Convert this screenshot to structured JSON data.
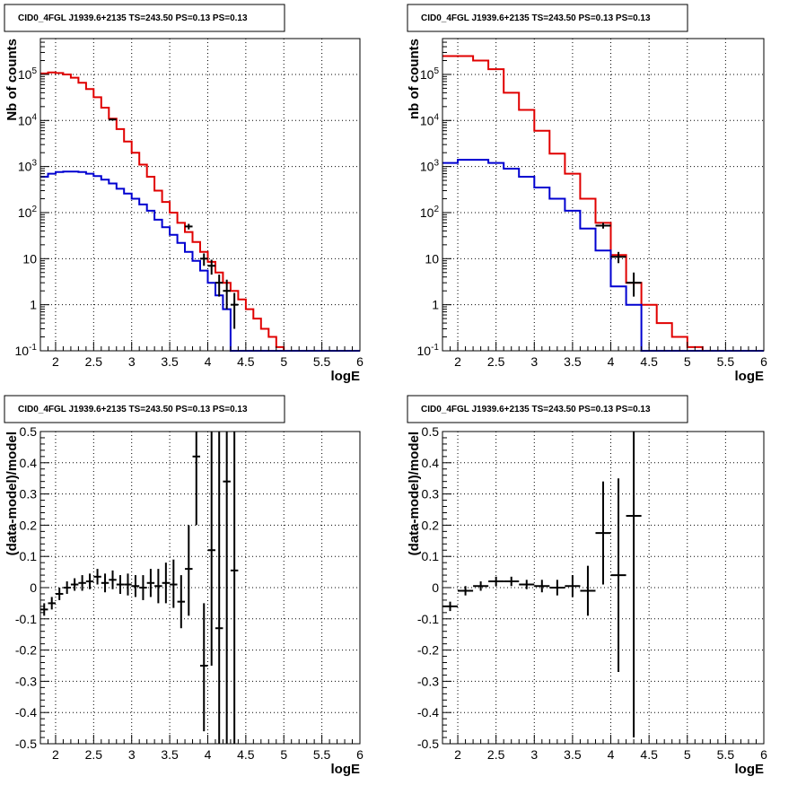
{
  "colors": {
    "data": "#000000",
    "model": "#e00000",
    "component": "#0000d0",
    "grid": "#000000"
  },
  "chart_data": [
    {
      "type": "line",
      "title": "CID0_4FGL J1939.6+2135 TS=243.50 PS=0.13 PS=0.13",
      "xlabel": "logE",
      "ylabel": "Nb of counts",
      "xlim": [
        1.8,
        6.0
      ],
      "ylim": [
        0.1,
        600000
      ],
      "yscale": "log",
      "grid": true,
      "xticks": [
        "2",
        "2.5",
        "3",
        "3.5",
        "4",
        "4.5",
        "5",
        "5.5",
        "6"
      ],
      "yticks": [
        "10^-1",
        "1",
        "10",
        "10^2",
        "10^3",
        "10^4",
        "10^5"
      ],
      "series": [
        {
          "style": "step",
          "color": "#e00000",
          "bin_width": 0.1,
          "x": [
            1.8,
            1.9,
            2.0,
            2.1,
            2.2,
            2.3,
            2.4,
            2.5,
            2.6,
            2.7,
            2.8,
            2.9,
            3.0,
            3.1,
            3.2,
            3.3,
            3.4,
            3.5,
            3.6,
            3.7,
            3.8,
            3.9,
            4.0,
            4.1,
            4.2,
            4.3,
            4.4,
            4.5,
            4.6,
            4.7,
            4.8,
            4.9,
            5.0,
            5.1,
            5.2,
            5.3,
            5.4,
            5.5,
            5.6,
            5.7,
            5.8,
            5.9
          ],
          "values": [
            105000,
            110000,
            107000,
            100000,
            85000,
            66000,
            48000,
            32000,
            19000,
            11000,
            6500,
            3500,
            2000,
            1100,
            600,
            300,
            170,
            100,
            60,
            38,
            23,
            14,
            8.5,
            5,
            3,
            2,
            1.3,
            0.8,
            0.5,
            0.3,
            0.2,
            0.12,
            0.1,
            0.1,
            0.1,
            0.1,
            0.1,
            0.1,
            0.1,
            0.1,
            0.1,
            0.1
          ]
        },
        {
          "style": "step",
          "color": "#0000d0",
          "bin_width": 0.1,
          "x": [
            1.8,
            1.9,
            2.0,
            2.1,
            2.2,
            2.3,
            2.4,
            2.5,
            2.6,
            2.7,
            2.8,
            2.9,
            3.0,
            3.1,
            3.2,
            3.3,
            3.4,
            3.5,
            3.6,
            3.7,
            3.8,
            3.9,
            4.0,
            4.1,
            4.2,
            4.3,
            4.4,
            4.5,
            4.6,
            4.7,
            4.8,
            4.9,
            5.0,
            5.1,
            5.2,
            5.3,
            5.4,
            5.5,
            5.6,
            5.7,
            5.8,
            5.9
          ],
          "values": [
            600,
            700,
            760,
            780,
            780,
            760,
            700,
            620,
            520,
            430,
            330,
            260,
            200,
            150,
            110,
            70,
            48,
            33,
            22,
            14,
            9,
            5.5,
            3,
            1.6,
            0.8,
            0.1,
            0.1,
            0.1,
            0.1,
            0.1,
            0.1,
            0.1,
            0.1,
            0.1,
            0.1,
            0.1,
            0.1,
            0.1,
            0.1,
            0.1,
            0.1,
            0.1
          ]
        },
        {
          "style": "errorbar",
          "color": "#000000",
          "xerr": 0.05,
          "x": [
            2.75,
            3.75,
            3.95,
            4.05,
            4.15,
            4.25,
            4.35
          ],
          "values": [
            10500,
            50,
            10,
            7,
            3,
            2,
            1
          ],
          "ylow": [
            10000,
            43,
            7,
            4.5,
            1.5,
            0.8,
            0.3
          ],
          "yhigh": [
            11000,
            57,
            13,
            9.5,
            4.5,
            3.5,
            1.8
          ]
        }
      ]
    },
    {
      "type": "line",
      "title": "CID0_4FGL J1939.6+2135 TS=243.50 PS=0.13 PS=0.13",
      "xlabel": "logE",
      "ylabel": "nb of counts",
      "xlim": [
        1.8,
        6.0
      ],
      "ylim": [
        0.1,
        600000
      ],
      "yscale": "log",
      "grid": true,
      "xticks": [
        "2",
        "2.5",
        "3",
        "3.5",
        "4",
        "4.5",
        "5",
        "5.5",
        "6"
      ],
      "yticks": [
        "10^-1",
        "1",
        "10",
        "10^2",
        "10^3",
        "10^4",
        "10^5"
      ],
      "series": [
        {
          "style": "step",
          "color": "#e00000",
          "bin_width": 0.2,
          "x": [
            1.8,
            2.0,
            2.2,
            2.4,
            2.6,
            2.8,
            3.0,
            3.2,
            3.4,
            3.6,
            3.8,
            4.0,
            4.2,
            4.4,
            4.6,
            4.8,
            5.0,
            5.2,
            5.4,
            5.6,
            5.8
          ],
          "values": [
            250000,
            250000,
            200000,
            130000,
            40000,
            17000,
            6000,
            1900,
            700,
            200,
            60,
            12,
            3,
            1,
            0.4,
            0.2,
            0.12,
            0.1,
            0.1,
            0.1,
            0.1
          ]
        },
        {
          "style": "step",
          "color": "#0000d0",
          "bin_width": 0.2,
          "x": [
            1.8,
            2.0,
            2.2,
            2.4,
            2.6,
            2.8,
            3.0,
            3.2,
            3.4,
            3.6,
            3.8,
            4.0,
            4.2,
            4.4,
            4.6,
            4.8,
            5.0,
            5.2,
            5.4,
            5.6,
            5.8
          ],
          "values": [
            1200,
            1400,
            1400,
            1200,
            900,
            600,
            350,
            200,
            110,
            45,
            15,
            2.5,
            1,
            0.1,
            0.1,
            0.1,
            0.1,
            0.1,
            0.1,
            0.1,
            0.1
          ]
        },
        {
          "style": "errorbar",
          "color": "#000000",
          "xerr": 0.1,
          "x": [
            3.9,
            4.1,
            4.3
          ],
          "values": [
            52,
            11,
            3
          ],
          "ylow": [
            45,
            8,
            1.5
          ],
          "yhigh": [
            60,
            14,
            5
          ]
        }
      ]
    },
    {
      "type": "scatter",
      "title": "CID0_4FGL J1939.6+2135 TS=243.50 PS=0.13 PS=0.13",
      "xlabel": "logE",
      "ylabel": "(data-model)/model",
      "xlim": [
        1.8,
        6.0
      ],
      "ylim": [
        -0.5,
        0.5
      ],
      "grid": true,
      "xticks": [
        "2",
        "2.5",
        "3",
        "3.5",
        "4",
        "4.5",
        "5",
        "5.5",
        "6"
      ],
      "yticks": [
        "-0.5",
        "-0.4",
        "-0.3",
        "-0.2",
        "-0.1",
        "0",
        "0.1",
        "0.2",
        "0.3",
        "0.4",
        "0.5"
      ],
      "series": [
        {
          "style": "errorbar",
          "color": "#000000",
          "xerr": 0.05,
          "x": [
            1.85,
            1.95,
            2.05,
            2.15,
            2.25,
            2.35,
            2.45,
            2.55,
            2.65,
            2.75,
            2.85,
            2.95,
            3.05,
            3.15,
            3.25,
            3.35,
            3.45,
            3.55,
            3.65,
            3.75,
            3.85,
            3.95,
            4.05,
            4.15,
            4.25,
            4.35
          ],
          "values": [
            -0.07,
            -0.05,
            -0.02,
            0.0,
            0.01,
            0.015,
            0.02,
            0.035,
            0.015,
            0.025,
            0.01,
            0.01,
            0.005,
            0.0,
            0.015,
            0.005,
            0.015,
            0.01,
            -0.045,
            0.06,
            0.42,
            -0.25,
            0.12,
            -0.13,
            0.34,
            0.055
          ],
          "ylow": [
            -0.09,
            -0.07,
            -0.04,
            -0.02,
            -0.01,
            -0.01,
            -0.005,
            0.01,
            -0.015,
            -0.005,
            -0.02,
            -0.025,
            -0.03,
            -0.04,
            -0.03,
            -0.05,
            -0.05,
            -0.065,
            -0.13,
            -0.09,
            0.2,
            -0.46,
            -0.25,
            -0.5,
            -0.5,
            -0.5
          ],
          "yhigh": [
            -0.05,
            -0.03,
            0.0,
            0.02,
            0.03,
            0.04,
            0.045,
            0.06,
            0.045,
            0.055,
            0.04,
            0.045,
            0.04,
            0.04,
            0.06,
            0.06,
            0.08,
            0.09,
            0.04,
            0.2,
            0.5,
            -0.05,
            0.5,
            0.5,
            0.5,
            0.5
          ]
        }
      ]
    },
    {
      "type": "scatter",
      "title": "CID0_4FGL J1939.6+2135 TS=243.50 PS=0.13 PS=0.13",
      "xlabel": "logE",
      "ylabel": "(data-model)/model",
      "xlim": [
        1.8,
        6.0
      ],
      "ylim": [
        -0.5,
        0.5
      ],
      "grid": true,
      "xticks": [
        "2",
        "2.5",
        "3",
        "3.5",
        "4",
        "4.5",
        "5",
        "5.5",
        "6"
      ],
      "yticks": [
        "-0.5",
        "-0.4",
        "-0.3",
        "-0.2",
        "-0.1",
        "0",
        "0.1",
        "0.2",
        "0.3",
        "0.4",
        "0.5"
      ],
      "series": [
        {
          "style": "errorbar",
          "color": "#000000",
          "xerr": 0.1,
          "x": [
            1.9,
            2.1,
            2.3,
            2.5,
            2.7,
            2.9,
            3.1,
            3.3,
            3.5,
            3.7,
            3.9,
            4.1,
            4.3
          ],
          "values": [
            -0.06,
            -0.01,
            0.005,
            0.02,
            0.02,
            0.01,
            0.005,
            0.0,
            0.005,
            -0.01,
            0.175,
            0.04,
            0.23
          ],
          "ylow": [
            -0.075,
            -0.025,
            -0.01,
            0.005,
            0.005,
            -0.005,
            -0.015,
            -0.025,
            -0.03,
            -0.09,
            0.01,
            -0.27,
            -0.48
          ],
          "yhigh": [
            -0.045,
            0.005,
            0.02,
            0.035,
            0.035,
            0.025,
            0.025,
            0.025,
            0.04,
            0.07,
            0.34,
            0.35,
            0.5
          ]
        }
      ]
    }
  ]
}
